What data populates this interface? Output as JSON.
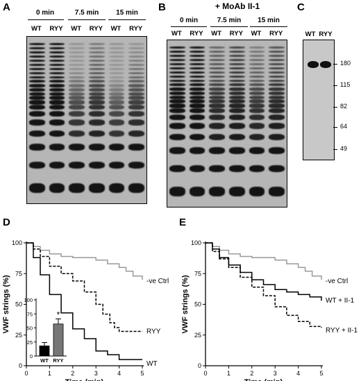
{
  "panels": {
    "A": {
      "letter": "A",
      "timepoints": [
        "0 min",
        "7.5 min",
        "15 min"
      ],
      "lanes": [
        "WT",
        "RYY",
        "WT",
        "RYY",
        "WT",
        "RYY"
      ]
    },
    "B": {
      "letter": "B",
      "title": "+ MoAb II-1",
      "timepoints": [
        "0 min",
        "7.5 min",
        "15 min"
      ],
      "lanes": [
        "WT",
        "RYY",
        "WT",
        "RYY",
        "WT",
        "RYY"
      ]
    },
    "C": {
      "letter": "C",
      "lanes": [
        "WT",
        "RYY"
      ],
      "mw_markers": [
        "180",
        "115",
        "82",
        "64",
        "49"
      ]
    },
    "D": {
      "letter": "D"
    },
    "E": {
      "letter": "E"
    }
  },
  "colors": {
    "ctrl": "#999999",
    "main": "#000000",
    "gel_bg": "#b6b6b6",
    "bar_ryy": "#777777"
  },
  "chart_data": [
    {
      "type": "line",
      "panel": "D",
      "xlabel": "Time (min)",
      "ylabel": "VWF strings (%)",
      "xlim": [
        0,
        5
      ],
      "ylim": [
        0,
        100
      ],
      "xticks": [
        "0",
        "1",
        "2",
        "3",
        "4",
        "5"
      ],
      "yticks": [
        "0",
        "25",
        "50",
        "75",
        "100"
      ],
      "series": [
        {
          "name": "-ve Ctrl",
          "style": "solid-gray",
          "x": [
            0,
            0.3,
            0.6,
            1.0,
            1.5,
            2.0,
            2.5,
            3.0,
            3.5,
            4.0,
            4.3,
            4.6,
            5.0
          ],
          "y": [
            100,
            97,
            94,
            91,
            89,
            88,
            88,
            86,
            83,
            80,
            77,
            73,
            70
          ]
        },
        {
          "name": "RYY",
          "style": "dashed-black",
          "x": [
            0,
            0.3,
            0.6,
            1.0,
            1.5,
            2.0,
            2.5,
            3.0,
            3.3,
            3.6,
            3.8,
            4.0,
            4.5,
            5.0
          ],
          "y": [
            100,
            95,
            89,
            81,
            75,
            69,
            60,
            50,
            42,
            35,
            31,
            28,
            28,
            28
          ]
        },
        {
          "name": "WT",
          "style": "solid-black",
          "x": [
            0,
            0.3,
            0.6,
            1.0,
            1.5,
            2.0,
            2.5,
            3.0,
            3.5,
            4.0,
            4.5,
            5.0
          ],
          "y": [
            100,
            88,
            74,
            58,
            43,
            30,
            22,
            12,
            9,
            5,
            5,
            5
          ]
        }
      ],
      "inset": {
        "type": "bar",
        "categories": [
          "WT",
          "RYY"
        ],
        "values": [
          18,
          57
        ],
        "errors": [
          6,
          9
        ],
        "ylim": [
          0,
          100
        ],
        "yticks": [
          "0",
          "25",
          "50",
          "75",
          "100"
        ],
        "annotation": "*"
      }
    },
    {
      "type": "line",
      "panel": "E",
      "xlabel": "Time (min)",
      "ylabel": "VWF strings (%)",
      "xlim": [
        0,
        5
      ],
      "ylim": [
        0,
        100
      ],
      "xticks": [
        "0",
        "1",
        "2",
        "3",
        "4",
        "5"
      ],
      "yticks": [
        "0",
        "25",
        "50",
        "75",
        "100"
      ],
      "series": [
        {
          "name": "-ve Ctrl",
          "style": "solid-gray",
          "x": [
            0,
            0.3,
            0.6,
            1.0,
            1.5,
            2.0,
            2.5,
            3.0,
            3.5,
            4.0,
            4.3,
            4.6,
            5.0
          ],
          "y": [
            100,
            97,
            94,
            91,
            89,
            88,
            88,
            86,
            83,
            80,
            77,
            73,
            70
          ]
        },
        {
          "name": "WT + II-1",
          "style": "solid-black",
          "x": [
            0,
            0.3,
            0.6,
            1.0,
            1.5,
            2.0,
            2.5,
            3.0,
            3.5,
            4.0,
            4.5,
            5.0
          ],
          "y": [
            100,
            95,
            88,
            82,
            76,
            70,
            66,
            62,
            60,
            58,
            56,
            53
          ]
        },
        {
          "name": "RYY + II-1",
          "style": "dashed-black",
          "x": [
            0,
            0.3,
            0.6,
            1.0,
            1.5,
            2.0,
            2.5,
            3.0,
            3.5,
            4.0,
            4.5,
            5.0
          ],
          "y": [
            100,
            93,
            87,
            80,
            72,
            64,
            57,
            48,
            41,
            36,
            32,
            31
          ]
        }
      ]
    }
  ]
}
